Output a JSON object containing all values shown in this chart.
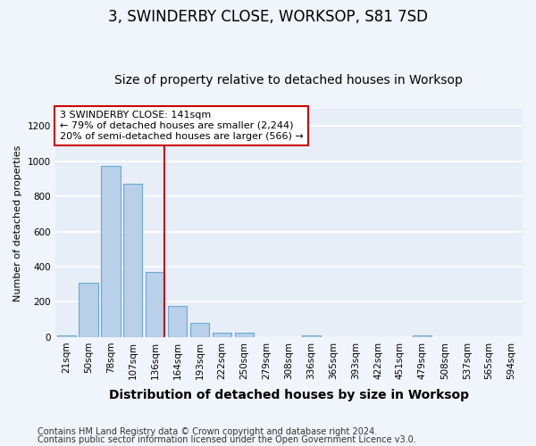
{
  "title": "3, SWINDERBY CLOSE, WORKSOP, S81 7SD",
  "subtitle": "Size of property relative to detached houses in Worksop",
  "xlabel": "Distribution of detached houses by size in Worksop",
  "ylabel": "Number of detached properties",
  "categories": [
    "21sqm",
    "50sqm",
    "78sqm",
    "107sqm",
    "136sqm",
    "164sqm",
    "193sqm",
    "222sqm",
    "250sqm",
    "279sqm",
    "308sqm",
    "336sqm",
    "365sqm",
    "393sqm",
    "422sqm",
    "451sqm",
    "479sqm",
    "508sqm",
    "537sqm",
    "565sqm",
    "594sqm"
  ],
  "values": [
    10,
    310,
    975,
    870,
    370,
    175,
    80,
    25,
    25,
    0,
    0,
    10,
    0,
    0,
    0,
    0,
    10,
    0,
    0,
    0,
    0
  ],
  "bar_color": "#b8d0ea",
  "bar_edge_color": "#6aaad4",
  "vline_color": "#cc0000",
  "annotation_text": "3 SWINDERBY CLOSE: 141sqm\n← 79% of detached houses are smaller (2,244)\n20% of semi-detached houses are larger (566) →",
  "annotation_box_color": "#cc0000",
  "ylim": [
    0,
    1300
  ],
  "yticks": [
    0,
    200,
    400,
    600,
    800,
    1000,
    1200
  ],
  "footer1": "Contains HM Land Registry data © Crown copyright and database right 2024.",
  "footer2": "Contains public sector information licensed under the Open Government Licence v3.0.",
  "fig_facecolor": "#f0f4fb",
  "ax_facecolor": "#e8eef8",
  "grid_color": "#ffffff",
  "title_fontsize": 12,
  "subtitle_fontsize": 10,
  "xlabel_fontsize": 10,
  "ylabel_fontsize": 8,
  "tick_fontsize": 7.5,
  "annotation_fontsize": 8,
  "footer_fontsize": 7
}
